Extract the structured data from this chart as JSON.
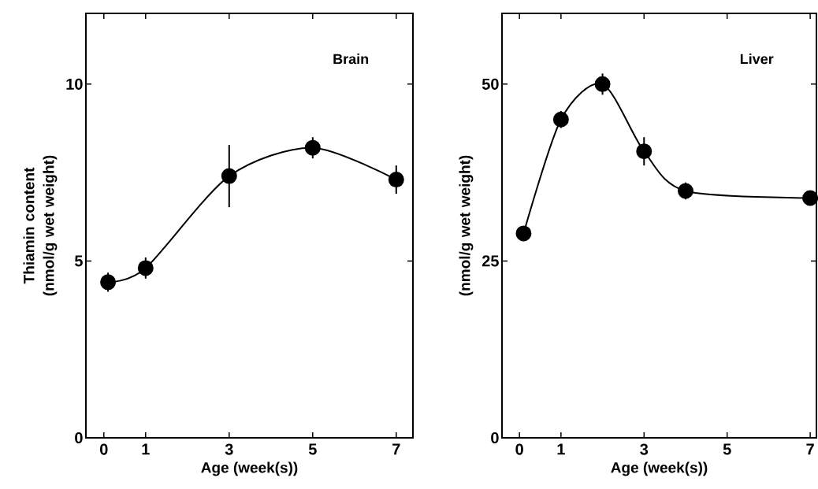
{
  "chart_data": [
    {
      "type": "line",
      "color": "#000000",
      "marker": "circle",
      "xlabel": "Age (week(s))",
      "ylabel": "Thiamin content (nmol/g wet weight)",
      "annotations": [
        "Brain"
      ],
      "x": [
        0.1,
        1,
        3,
        5,
        7
      ],
      "values": [
        4.4,
        4.8,
        7.4,
        8.2,
        7.3
      ],
      "errors": [
        0.27,
        0.3,
        0.88,
        0.3,
        0.4
      ],
      "xlim": [
        -0.43,
        7.4
      ],
      "ylim": [
        0,
        12
      ],
      "xticks": [
        0,
        1,
        3,
        5,
        7
      ],
      "yticks": [
        0,
        5,
        10
      ]
    },
    {
      "type": "line",
      "color": "#000000",
      "marker": "circle",
      "xlabel": "Age (week(s))",
      "ylabel": "(nmol/g wet weight)",
      "annotations": [
        "Liver"
      ],
      "x": [
        0.1,
        1,
        2,
        3,
        4,
        7
      ],
      "values": [
        28.9,
        45.0,
        50.0,
        40.5,
        34.9,
        33.9
      ],
      "errors": [
        null,
        1.2,
        1.5,
        2.0,
        1.2,
        null
      ],
      "xlim": [
        -0.42,
        7.15
      ],
      "ylim": [
        0,
        60
      ],
      "xticks": [
        0,
        1,
        3,
        5,
        7
      ],
      "yticks": [
        0,
        25,
        50
      ]
    }
  ]
}
